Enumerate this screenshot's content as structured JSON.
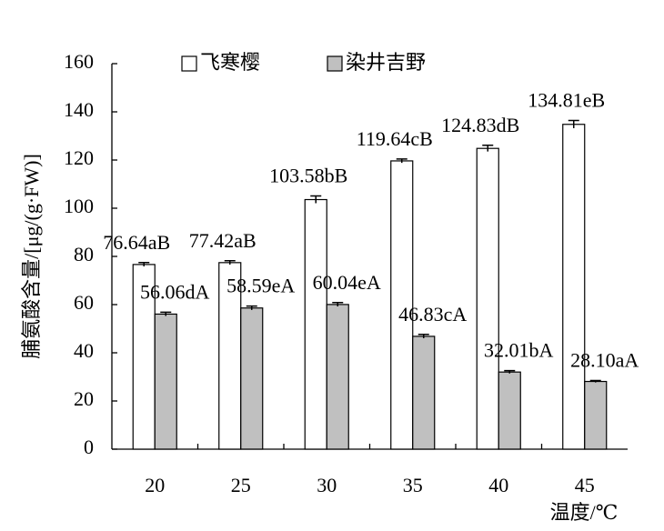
{
  "chart_data": {
    "type": "bar",
    "x_label": "温度/℃",
    "y_label": "脯氨酸含量/[μg/(g·FW)]",
    "categories": [
      "20",
      "25",
      "30",
      "35",
      "40",
      "45"
    ],
    "series": [
      {
        "name": "飞寒樱",
        "color": "#ffffff",
        "values": [
          76.64,
          77.42,
          103.58,
          119.64,
          124.83,
          134.81
        ],
        "errors": [
          0.8,
          0.8,
          1.5,
          0.8,
          1.3,
          1.6
        ],
        "value_labels": [
          "76.64aB",
          "77.42aB",
          "103.58bB",
          "119.64cB",
          "124.83dB",
          "134.81eB"
        ]
      },
      {
        "name": "染井吉野",
        "color": "#c0c0c0",
        "values": [
          56.06,
          58.59,
          60.04,
          46.83,
          32.01,
          28.1
        ],
        "errors": [
          0.8,
          0.8,
          0.8,
          0.8,
          0.6,
          0.4
        ],
        "value_labels": [
          "56.06dA",
          "58.59eA",
          "60.04eA",
          "46.83cA",
          "32.01bA",
          "28.10aA"
        ]
      }
    ],
    "ylim": [
      0,
      160
    ],
    "yticks": [
      0,
      20,
      40,
      60,
      80,
      100,
      120,
      140,
      160
    ],
    "legend": "top",
    "grid": false
  }
}
